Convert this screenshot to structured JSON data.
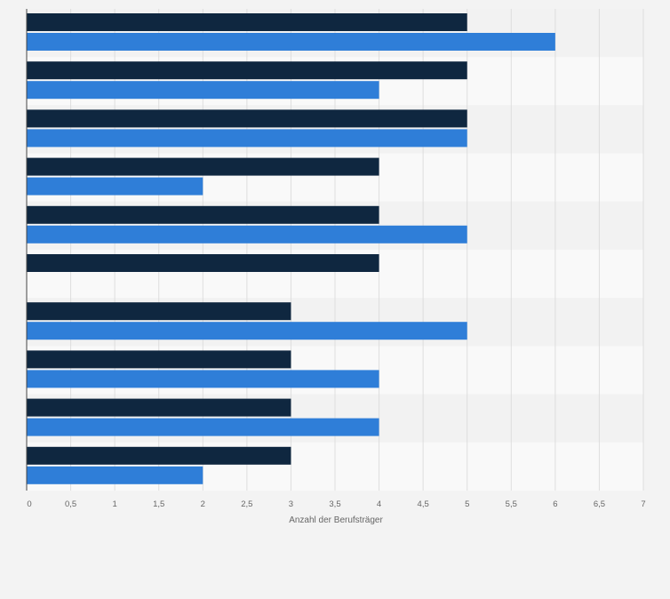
{
  "chart_data": {
    "type": "bar",
    "orientation": "horizontal",
    "xlabel": "Anzahl der Berufsträger",
    "xlim": [
      0,
      7
    ],
    "ticks": [
      "0",
      "0,5",
      "1",
      "1,5",
      "2",
      "2,5",
      "3",
      "3,5",
      "4",
      "4,5",
      "5",
      "5,5",
      "6",
      "6,5",
      "7"
    ],
    "grid": true,
    "series": [
      {
        "color": "#0f2740",
        "values": [
          5,
          5,
          5,
          4,
          4,
          4,
          3,
          3,
          3,
          3
        ]
      },
      {
        "color": "#2f7ed8",
        "values": [
          6,
          4,
          5,
          2,
          5,
          null,
          5,
          4,
          4,
          2
        ]
      }
    ]
  },
  "colors": {
    "band_dark": "#f2f2f2",
    "band_light": "#f9f9f9",
    "grid": "#dedede",
    "axis": "#444444",
    "tick_text": "#666666"
  }
}
